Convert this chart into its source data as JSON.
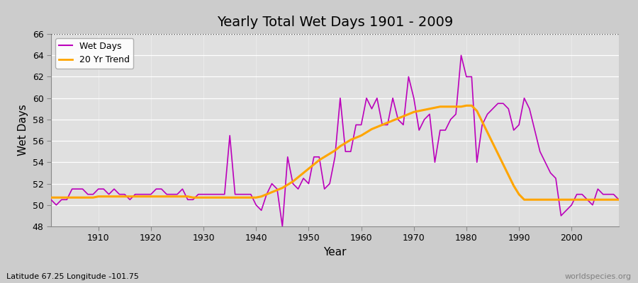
{
  "title": "Yearly Total Wet Days 1901 - 2009",
  "xlabel": "Year",
  "ylabel": "Wet Days",
  "subtitle": "Latitude 67.25 Longitude -101.75",
  "watermark": "worldspecies.org",
  "ylim": [
    48,
    66
  ],
  "yticks": [
    48,
    50,
    52,
    54,
    56,
    58,
    60,
    62,
    64,
    66
  ],
  "xlim": [
    1901,
    2009
  ],
  "xticks": [
    1910,
    1920,
    1930,
    1940,
    1950,
    1960,
    1970,
    1980,
    1990,
    2000
  ],
  "bg_color": "#e0e0e0",
  "line_color": "#bb00bb",
  "trend_color": "#ffa500",
  "legend_wet": "Wet Days",
  "legend_trend": "20 Yr Trend",
  "years": [
    1901,
    1902,
    1903,
    1904,
    1905,
    1906,
    1907,
    1908,
    1909,
    1910,
    1911,
    1912,
    1913,
    1914,
    1915,
    1916,
    1917,
    1918,
    1919,
    1920,
    1921,
    1922,
    1923,
    1924,
    1925,
    1926,
    1927,
    1928,
    1929,
    1930,
    1931,
    1932,
    1933,
    1934,
    1935,
    1936,
    1937,
    1938,
    1939,
    1940,
    1941,
    1942,
    1943,
    1944,
    1945,
    1946,
    1947,
    1948,
    1949,
    1950,
    1951,
    1952,
    1953,
    1954,
    1955,
    1956,
    1957,
    1958,
    1959,
    1960,
    1961,
    1962,
    1963,
    1964,
    1965,
    1966,
    1967,
    1968,
    1969,
    1970,
    1971,
    1972,
    1973,
    1974,
    1975,
    1976,
    1977,
    1978,
    1979,
    1980,
    1981,
    1982,
    1983,
    1984,
    1985,
    1986,
    1987,
    1988,
    1989,
    1990,
    1991,
    1992,
    1993,
    1994,
    1995,
    1996,
    1997,
    1998,
    1999,
    2000,
    2001,
    2002,
    2003,
    2004,
    2005,
    2006,
    2007,
    2008,
    2009
  ],
  "wet_days": [
    50.5,
    50.0,
    50.5,
    50.5,
    51.5,
    51.5,
    51.5,
    51.0,
    51.0,
    51.5,
    51.5,
    51.0,
    51.5,
    51.0,
    51.0,
    50.5,
    51.0,
    51.0,
    51.0,
    51.0,
    51.5,
    51.5,
    51.0,
    51.0,
    51.0,
    51.5,
    50.5,
    50.5,
    51.0,
    51.0,
    51.0,
    51.0,
    51.0,
    51.0,
    56.5,
    51.0,
    51.0,
    51.0,
    51.0,
    50.0,
    49.5,
    51.0,
    52.0,
    51.5,
    48.0,
    54.5,
    52.0,
    51.5,
    52.5,
    52.0,
    54.5,
    54.5,
    51.5,
    52.0,
    54.5,
    60.0,
    55.0,
    55.0,
    57.5,
    57.5,
    60.0,
    59.0,
    60.0,
    57.5,
    57.5,
    60.0,
    58.0,
    57.5,
    62.0,
    60.0,
    57.0,
    58.0,
    58.5,
    54.0,
    57.0,
    57.0,
    58.0,
    58.5,
    64.0,
    62.0,
    62.0,
    54.0,
    57.5,
    58.5,
    59.0,
    59.5,
    59.5,
    59.0,
    57.0,
    57.5,
    60.0,
    59.0,
    57.0,
    55.0,
    54.0,
    53.0,
    52.5,
    49.0,
    49.5,
    50.0,
    51.0,
    51.0,
    50.5,
    50.0,
    51.5,
    51.0,
    51.0,
    51.0,
    50.5
  ],
  "trend_values": [
    50.7,
    50.7,
    50.7,
    50.7,
    50.7,
    50.7,
    50.7,
    50.7,
    50.7,
    50.8,
    50.8,
    50.8,
    50.8,
    50.8,
    50.8,
    50.8,
    50.8,
    50.8,
    50.8,
    50.8,
    50.8,
    50.8,
    50.8,
    50.8,
    50.8,
    50.8,
    50.8,
    50.7,
    50.7,
    50.7,
    50.7,
    50.7,
    50.7,
    50.7,
    50.7,
    50.7,
    50.7,
    50.7,
    50.7,
    50.7,
    50.8,
    51.0,
    51.2,
    51.4,
    51.6,
    51.9,
    52.2,
    52.6,
    53.0,
    53.4,
    53.8,
    54.2,
    54.5,
    54.8,
    55.1,
    55.5,
    55.8,
    56.1,
    56.3,
    56.5,
    56.8,
    57.1,
    57.3,
    57.5,
    57.7,
    57.9,
    58.1,
    58.3,
    58.5,
    58.7,
    58.8,
    58.9,
    59.0,
    59.1,
    59.2,
    59.2,
    59.2,
    59.2,
    59.2,
    59.3,
    59.3,
    58.8,
    57.8,
    56.8,
    55.8,
    54.8,
    53.8,
    52.8,
    51.8,
    51.0,
    50.5,
    50.5,
    50.5,
    50.5,
    50.5,
    50.5,
    50.5,
    50.5,
    50.5,
    50.5,
    50.5,
    50.5,
    50.5,
    50.5,
    50.5,
    50.5,
    50.5,
    50.5,
    50.5
  ]
}
